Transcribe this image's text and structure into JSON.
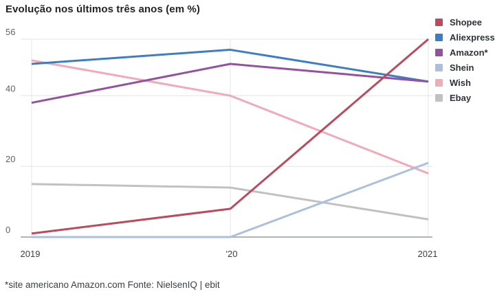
{
  "title": "Evolução nos últimos três anos (em %)",
  "footnote": "*site americano Amazon.com Fonte: NielsenIQ | ebit",
  "chart_data": {
    "type": "line",
    "x": [
      "2019",
      "'20",
      "2021"
    ],
    "series": [
      {
        "name": "Shopee",
        "color": "#bb4a5d",
        "values": [
          1,
          8,
          56
        ]
      },
      {
        "name": "Aliexpress",
        "color": "#3d7dc4",
        "values": [
          49,
          53,
          44
        ]
      },
      {
        "name": "Amazon*",
        "color": "#94519f",
        "values": [
          38,
          49,
          44
        ]
      },
      {
        "name": "Shein",
        "color": "#abc0dc",
        "values": [
          0,
          0,
          21
        ]
      },
      {
        "name": "Wish",
        "color": "#efabb9",
        "values": [
          50,
          40,
          18
        ]
      },
      {
        "name": "Ebay",
        "color": "#c1c1c1",
        "values": [
          15,
          14,
          5
        ]
      }
    ],
    "title": "Evolução nos últimos três anos (em %)",
    "xlabel": "",
    "ylabel": "",
    "ylim": [
      0,
      56
    ],
    "yticks": [
      0,
      20,
      40,
      56
    ],
    "grid": true,
    "legend_position": "right",
    "style": {
      "grid_color": "#e4e4e6",
      "axis_color": "#aeb4bc",
      "ytick_label_color": "#5f6368",
      "xtick_label_color": "#3c4043"
    }
  }
}
